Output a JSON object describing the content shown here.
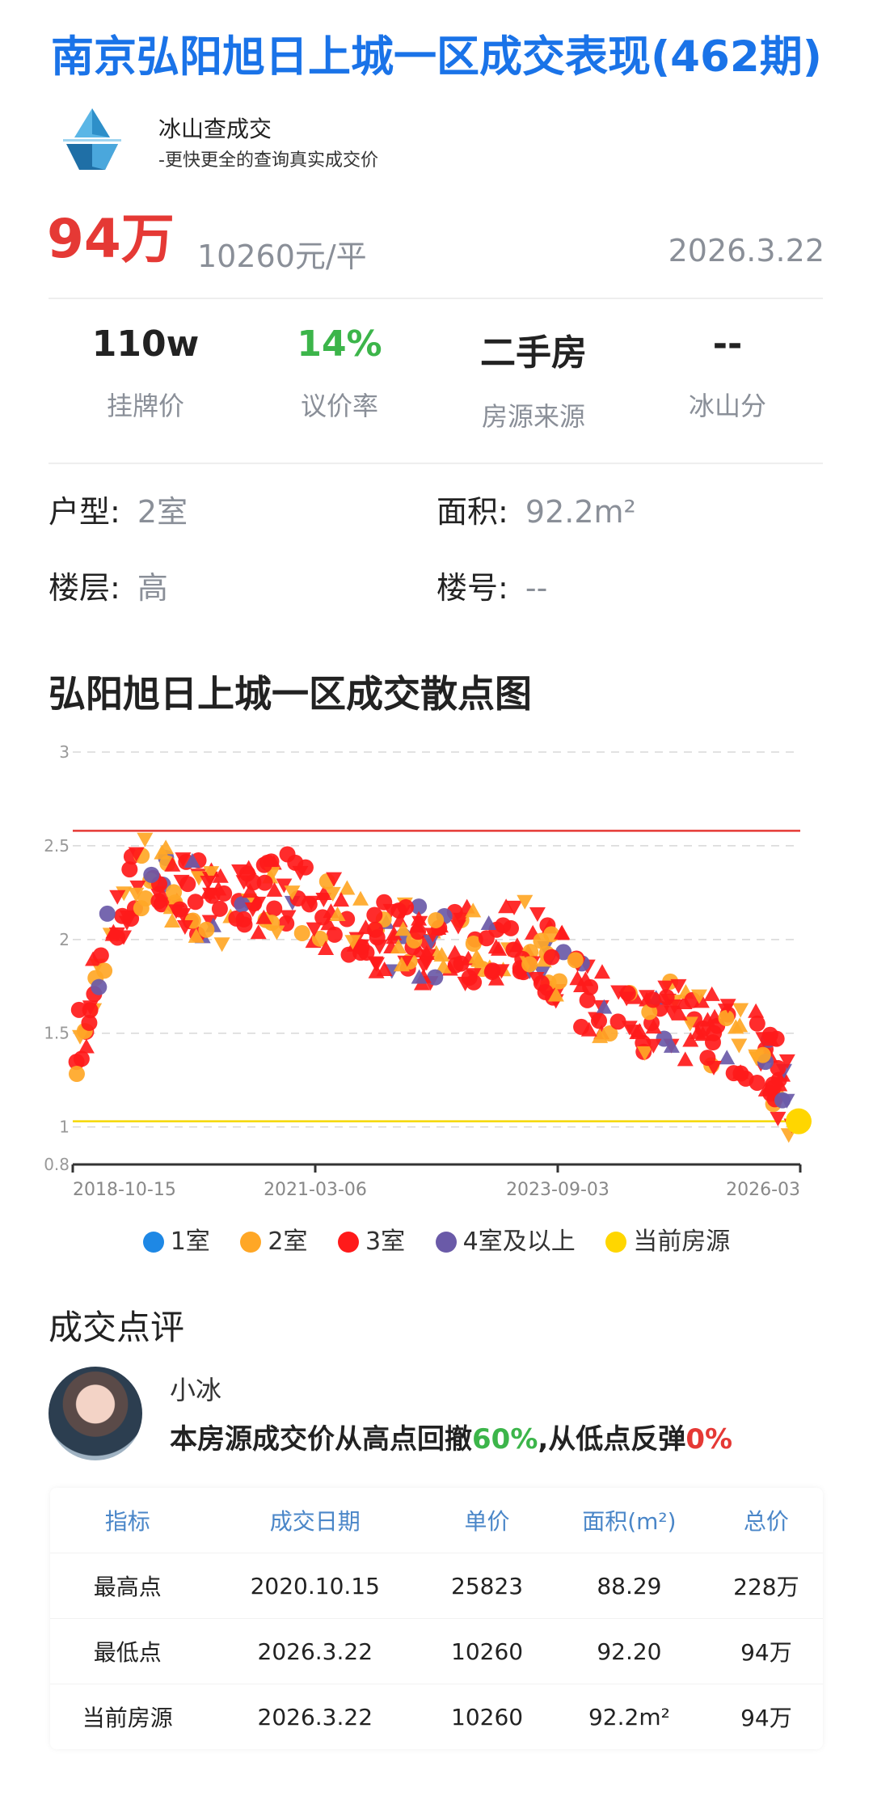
{
  "header": {
    "title": "南京弘阳旭日上城一区成交表现(462期)",
    "brand_name": "冰山查成交",
    "brand_sub": "-更快更全的查询真实成交价"
  },
  "listing": {
    "price": "94万",
    "unit_price": "10260元/平",
    "date": "2026.3.22"
  },
  "stats": [
    {
      "value": "110w",
      "label": "挂牌价"
    },
    {
      "value": "14%",
      "label": "议价率"
    },
    {
      "value": "二手房",
      "label": "房源来源"
    },
    {
      "value": "--",
      "label": "冰山分"
    }
  ],
  "attributes": {
    "layout_key": "户型:",
    "layout_val": "2室",
    "area_key": "面积:",
    "area_val": "92.2m²",
    "floor_key": "楼层:",
    "floor_val": "高",
    "building_key": "楼号:",
    "building_val": "--"
  },
  "chart_section_title": "弘阳旭日上城一区成交散点图",
  "chart_data": {
    "type": "scatter",
    "y_ticks": [
      "3",
      "2.5",
      "2",
      "1.5",
      "1",
      "0.8"
    ],
    "ylim": [
      0.8,
      3
    ],
    "x_ticks": [
      "2018-10-15",
      "2021-03-06",
      "2023-09-03",
      "2026-03"
    ],
    "reference_lines": [
      {
        "value": 2.58,
        "color": "#e53935"
      },
      {
        "value": 1.03,
        "color": "#f5d800"
      }
    ],
    "legend": [
      {
        "name": "1室",
        "color": "#1e88e5"
      },
      {
        "name": "2室",
        "color": "#ffa726"
      },
      {
        "name": "3室",
        "color": "#ff1a1a"
      },
      {
        "name": "4室及以上",
        "color": "#6a5aa8"
      },
      {
        "name": "当前房源",
        "color": "#ffd600"
      }
    ],
    "trend": [
      {
        "t": 0.0,
        "y": 1.25
      },
      {
        "t": 0.02,
        "y": 1.65
      },
      {
        "t": 0.05,
        "y": 2.05
      },
      {
        "t": 0.09,
        "y": 2.35
      },
      {
        "t": 0.14,
        "y": 2.3
      },
      {
        "t": 0.2,
        "y": 2.15
      },
      {
        "t": 0.3,
        "y": 2.25
      },
      {
        "t": 0.4,
        "y": 2.05
      },
      {
        "t": 0.5,
        "y": 1.95
      },
      {
        "t": 0.62,
        "y": 2.0
      },
      {
        "t": 0.66,
        "y": 1.9
      },
      {
        "t": 0.72,
        "y": 1.65
      },
      {
        "t": 0.85,
        "y": 1.55
      },
      {
        "t": 0.94,
        "y": 1.45
      },
      {
        "t": 1.0,
        "y": 1.05
      }
    ],
    "current_point": {
      "x": "2026-03",
      "y": 1.03
    }
  },
  "review": {
    "title": "成交点评",
    "reviewer": "小冰",
    "text_a": "本房源成交价从高点回撤",
    "pct_a": "60%",
    "text_b": ",从低点反弹",
    "pct_b": "0%"
  },
  "table": {
    "headers": [
      "指标",
      "成交日期",
      "单价",
      "面积(m²)",
      "总价"
    ],
    "rows": [
      [
        "最高点",
        "2020.10.15",
        "25823",
        "88.29",
        "228万"
      ],
      [
        "最低点",
        "2026.3.22",
        "10260",
        "92.20",
        "94万"
      ],
      [
        "当前房源",
        "2026.3.22",
        "10260",
        "92.2m²",
        "94万"
      ]
    ]
  }
}
